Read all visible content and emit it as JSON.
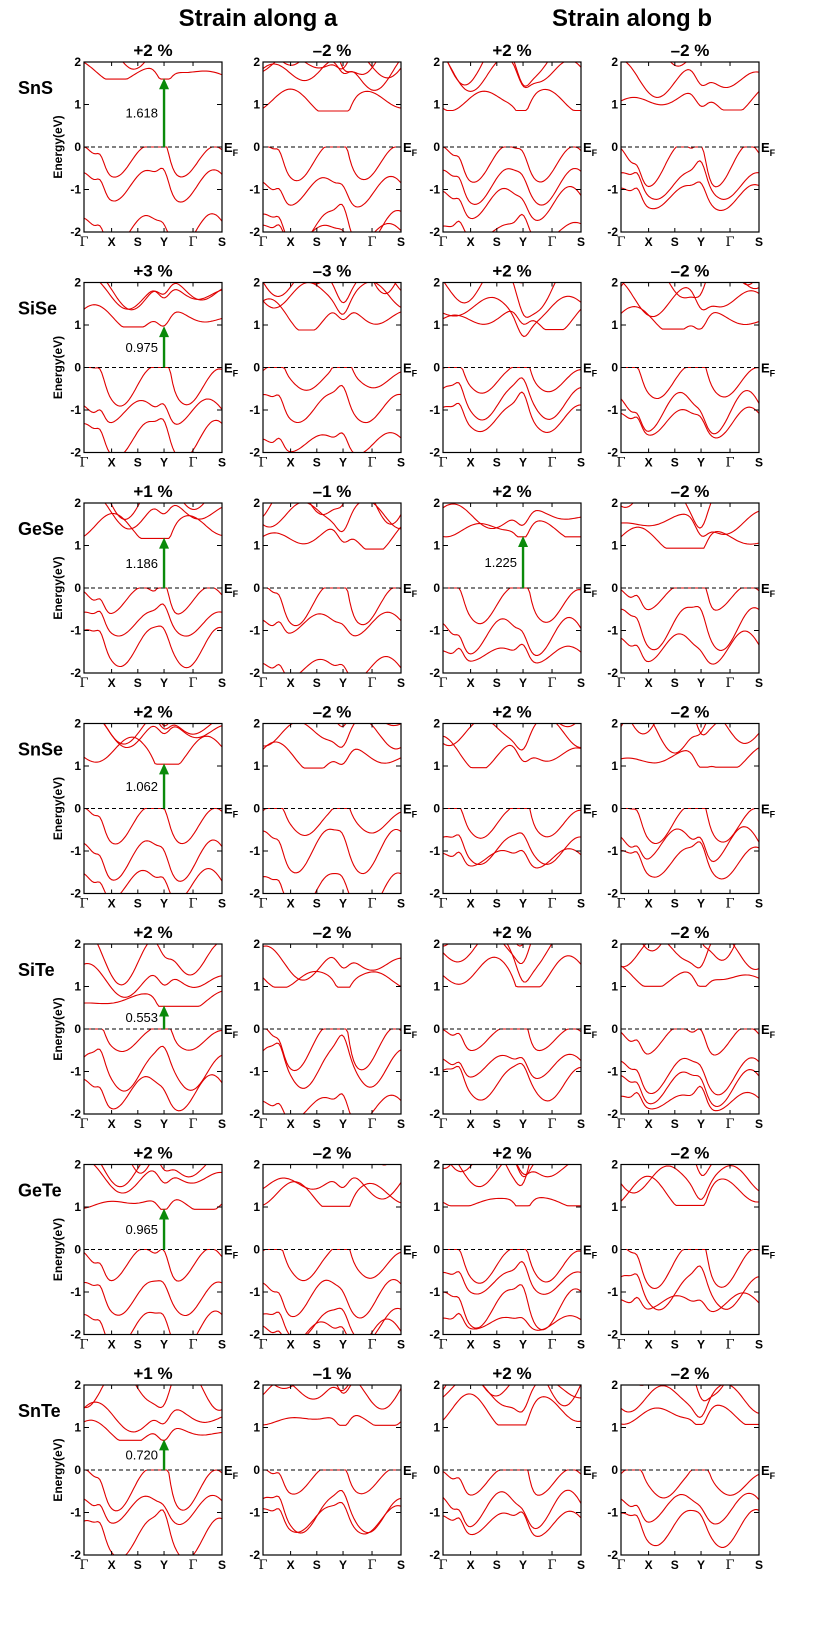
{
  "column_headers": [
    "Strain along a",
    "Strain along b"
  ],
  "y_axis_label": "Energy(eV)",
  "fermi_label": "E",
  "fermi_sub": "F",
  "colors": {
    "band": "#e00000",
    "arrow": "#0a8a0a"
  },
  "chart_data": {
    "type": "line",
    "description_kpath": [
      "Γ",
      "X",
      "S",
      "Y",
      "Γ",
      "S"
    ],
    "ylim": [
      -2,
      2
    ],
    "yticks": [
      -2,
      -1,
      0,
      1,
      2
    ],
    "rows": [
      {
        "material": "SnS",
        "panels": [
          {
            "strain": "+2 %",
            "gap": "1.618"
          },
          {
            "strain": "–2 %"
          },
          {
            "strain": "+2 %"
          },
          {
            "strain": "–2 %"
          }
        ]
      },
      {
        "material": "SiSe",
        "panels": [
          {
            "strain": "+3 %",
            "gap": "0.975"
          },
          {
            "strain": "–3 %"
          },
          {
            "strain": "+2 %"
          },
          {
            "strain": "–2 %"
          }
        ]
      },
      {
        "material": "GeSe",
        "panels": [
          {
            "strain": "+1 %",
            "gap": "1.186"
          },
          {
            "strain": "–1 %"
          },
          {
            "strain": "+2 %",
            "gap": "1.225"
          },
          {
            "strain": "–2 %"
          }
        ]
      },
      {
        "material": "SnSe",
        "panels": [
          {
            "strain": "+2 %",
            "gap": "1.062"
          },
          {
            "strain": "–2 %"
          },
          {
            "strain": "+2 %"
          },
          {
            "strain": "–2 %"
          }
        ]
      },
      {
        "material": "SiTe",
        "panels": [
          {
            "strain": "+2 %",
            "gap": "0.553"
          },
          {
            "strain": "–2 %"
          },
          {
            "strain": "+2 %"
          },
          {
            "strain": "–2 %"
          }
        ]
      },
      {
        "material": "GeTe",
        "panels": [
          {
            "strain": "+2 %",
            "gap": "0.965"
          },
          {
            "strain": "–2 %"
          },
          {
            "strain": "+2 %"
          },
          {
            "strain": "–2 %"
          }
        ]
      },
      {
        "material": "SnTe",
        "panels": [
          {
            "strain": "+1 %",
            "gap": "0.720"
          },
          {
            "strain": "–1 %"
          },
          {
            "strain": "+2 %"
          },
          {
            "strain": "–2 %"
          }
        ]
      }
    ]
  }
}
